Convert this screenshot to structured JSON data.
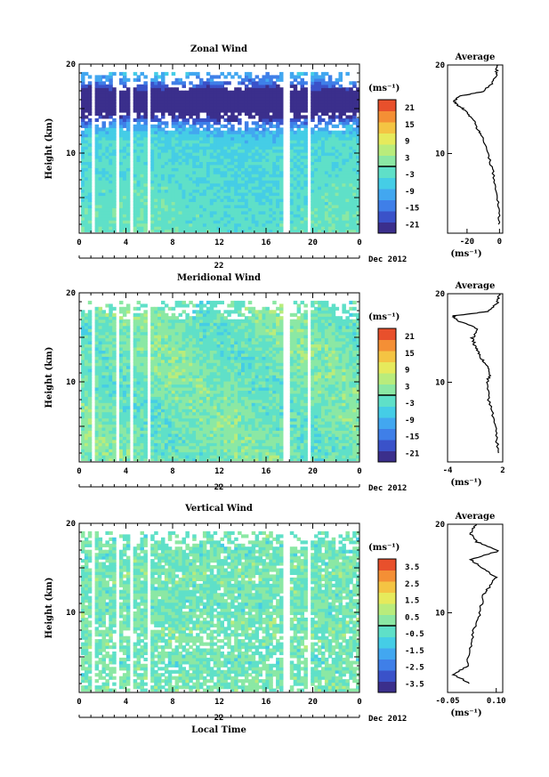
{
  "chart_data": [
    {
      "type": "heatmap",
      "title": "Zonal Wind",
      "ylabel": "Height (km)",
      "xlabel": "",
      "x_ticks": [
        "0",
        "4",
        "8",
        "12",
        "16",
        "20",
        "0"
      ],
      "y_ticks": [
        "20",
        "10"
      ],
      "date_day": "22",
      "date_label": "Dec 2012",
      "xlim": [
        0,
        24
      ],
      "ylim": [
        1,
        20
      ],
      "colorbar": {
        "unit": "(ms⁻¹)",
        "tick_labels": [
          "21",
          "15",
          "9",
          "3",
          "-3",
          "-9",
          "-15",
          "-21"
        ],
        "range": [
          -24,
          24
        ]
      },
      "data_gaps_hours": [
        [
          0.8,
          1.2
        ],
        [
          3.0,
          3.4
        ],
        [
          4.3,
          4.6
        ],
        [
          5.6,
          6.0
        ],
        [
          17.4,
          17.9
        ],
        [
          19.4,
          19.8
        ]
      ],
      "average_profile": {
        "title": "Average",
        "xlabel": "(ms⁻¹)",
        "x_ticks": [
          "-20",
          "0"
        ],
        "y_ticks": [
          "20",
          "10"
        ],
        "xlim": [
          -32,
          2
        ],
        "heights": [
          2,
          4,
          6,
          8,
          10,
          12,
          13,
          14,
          15,
          15.5,
          16,
          16.5,
          17,
          18,
          19,
          20
        ],
        "values": [
          0,
          -1,
          -2,
          -4,
          -7,
          -11,
          -14,
          -17,
          -22,
          -26,
          -28,
          -24,
          -10,
          -4,
          -2,
          -1
        ]
      }
    },
    {
      "type": "heatmap",
      "title": "Meridional Wind",
      "ylabel": "Height (km)",
      "xlabel": "",
      "x_ticks": [
        "0",
        "4",
        "8",
        "12",
        "16",
        "20",
        "0"
      ],
      "y_ticks": [
        "20",
        "10"
      ],
      "date_day": "22",
      "date_label": "Dec 2012",
      "xlim": [
        0,
        24
      ],
      "ylim": [
        1,
        20
      ],
      "colorbar": {
        "unit": "(ms⁻¹)",
        "tick_labels": [
          "21",
          "15",
          "9",
          "3",
          "-3",
          "-9",
          "-15",
          "-21"
        ],
        "range": [
          -24,
          24
        ]
      },
      "data_gaps_hours": [
        [
          0.8,
          1.2
        ],
        [
          3.0,
          3.4
        ],
        [
          4.3,
          4.6
        ],
        [
          5.6,
          6.0
        ],
        [
          17.4,
          17.9
        ],
        [
          19.4,
          19.8
        ]
      ],
      "average_profile": {
        "title": "Average",
        "xlabel": "(ms⁻¹)",
        "x_ticks": [
          "-4",
          "2"
        ],
        "y_ticks": [
          "20",
          "10"
        ],
        "xlim": [
          -4,
          2
        ],
        "heights": [
          2,
          4,
          6,
          8,
          10,
          11,
          12,
          13,
          14,
          15,
          16,
          17,
          17.5,
          18,
          19,
          20
        ],
        "values": [
          1.5,
          1.3,
          1.0,
          0.5,
          0.3,
          0.6,
          0.2,
          -0.5,
          -1.0,
          -1.3,
          -0.6,
          -3.0,
          -3.4,
          0.5,
          1.4,
          1.6
        ]
      }
    },
    {
      "type": "heatmap",
      "title": "Vertical Wind",
      "ylabel": "Height (km)",
      "xlabel": "Local Time",
      "x_ticks": [
        "0",
        "4",
        "8",
        "12",
        "16",
        "20",
        "0"
      ],
      "y_ticks": [
        "20",
        "10"
      ],
      "date_day": "22",
      "date_label": "Dec 2012",
      "xlim": [
        0,
        24
      ],
      "ylim": [
        1,
        20
      ],
      "colorbar": {
        "unit": "(ms⁻¹)",
        "tick_labels": [
          "3.5",
          "2.5",
          "1.5",
          "0.5",
          "-0.5",
          "-1.5",
          "-2.5",
          "-3.5"
        ],
        "range": [
          -4,
          4
        ]
      },
      "data_gaps_hours": [
        [
          0.8,
          1.2
        ],
        [
          3.0,
          3.4
        ],
        [
          4.3,
          4.6
        ],
        [
          5.6,
          6.0
        ],
        [
          17.4,
          17.9
        ],
        [
          19.4,
          19.8
        ]
      ],
      "average_profile": {
        "title": "Average",
        "xlabel": "(ms⁻¹)",
        "x_ticks": [
          "-0.05",
          "0.10"
        ],
        "y_ticks": [
          "20",
          "10"
        ],
        "xlim": [
          -0.05,
          0.12
        ],
        "heights": [
          2,
          3,
          4,
          6,
          8,
          10,
          12,
          13,
          14,
          15,
          16,
          17,
          18,
          19,
          20
        ],
        "values": [
          0.02,
          -0.03,
          0.01,
          0.02,
          0.03,
          0.05,
          0.06,
          0.08,
          0.1,
          0.06,
          0.02,
          0.11,
          0.04,
          0.02,
          0.04
        ]
      }
    }
  ]
}
